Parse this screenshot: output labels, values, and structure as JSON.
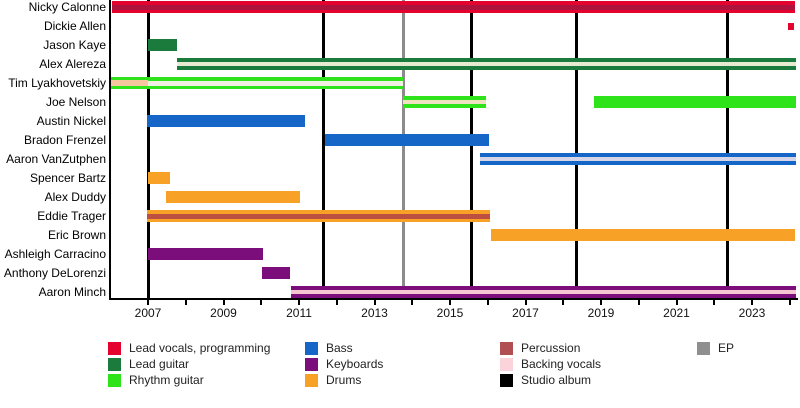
{
  "chart_data": {
    "type": "bar",
    "subtype": "band-member-gantt-timeline",
    "title": "",
    "xlabel": "",
    "ylabel": "",
    "x_axis": {
      "year_min": 2006.0,
      "year_max": 2024.2,
      "labeled_years": [
        "2007",
        "2009",
        "2011",
        "2013",
        "2015",
        "2017",
        "2019",
        "2021",
        "2023"
      ],
      "minor_tick_every_years": 1,
      "grid": "off"
    },
    "role_colors": {
      "lead_vocals_programming": "#E4032E",
      "lead_guitar": "#1A7B3D",
      "rhythm_guitar": "#2FE31B",
      "bass": "#1566C6",
      "keyboards": "#7C0E7C",
      "drums": "#F7A227",
      "percussion": "#B04E52",
      "backing_vocals": "#FBD3DB",
      "studio_album": "#000000",
      "ep": "#8F8F8F"
    },
    "members": [
      {
        "name": "Nicky Calonne",
        "bars": [
          {
            "start": 2006.05,
            "end": 2024.15,
            "role": "Lead vocals, programming",
            "color": "#E4032E",
            "stripe": {
              "role": "Percussion",
              "color": "#B0123E",
              "h": 5
            }
          }
        ]
      },
      {
        "name": "Dickie Allen",
        "bars": [
          {
            "start": 2023.95,
            "end": 2024.12,
            "role": "Lead vocals, programming",
            "color": "#E4032E",
            "h": 7
          }
        ]
      },
      {
        "name": "Jason Kaye",
        "bars": [
          {
            "start": 2007.0,
            "end": 2007.77,
            "role": "Lead guitar",
            "color": "#1A7B3D"
          }
        ]
      },
      {
        "name": "Alex Alereza",
        "bars": [
          {
            "start": 2007.77,
            "end": 2024.17,
            "role": "Lead guitar",
            "color": "#1A7B3D",
            "stripe": {
              "role": "Backing vocals",
              "color": "#E8EBD2",
              "h": 4
            }
          }
        ]
      },
      {
        "name": "Tim Lyakhovetskiy",
        "bars": [
          {
            "start": 2006.0,
            "end": 2007.0,
            "role": "Rhythm guitar",
            "color": "#2FE31B",
            "stripe": {
              "role": "Backing vocals",
              "color": "#F6C79E",
              "h": 6
            }
          },
          {
            "start": 2007.0,
            "end": 2013.76,
            "role": "Rhythm guitar",
            "color": "#2FE31B",
            "stripe": {
              "role": "Backing vocals",
              "color": "#EFF0E2",
              "h": 5
            }
          }
        ]
      },
      {
        "name": "Joe Nelson",
        "bars": [
          {
            "start": 2013.76,
            "end": 2015.95,
            "role": "Rhythm guitar",
            "color": "#2FE31B",
            "stripe": {
              "role": "Backing vocals",
              "color": "#EFE2C0",
              "h": 4
            }
          },
          {
            "start": 2018.81,
            "end": 2024.17,
            "role": "Rhythm guitar",
            "color": "#2FE31B"
          }
        ]
      },
      {
        "name": "Austin Nickel",
        "bars": [
          {
            "start": 2006.97,
            "end": 2011.16,
            "role": "Bass",
            "color": "#1566C6"
          }
        ]
      },
      {
        "name": "Bradon Frenzel",
        "bars": [
          {
            "start": 2011.69,
            "end": 2016.03,
            "role": "Bass",
            "color": "#1566C6"
          }
        ]
      },
      {
        "name": "Aaron VanZutphen",
        "bars": [
          {
            "start": 2015.79,
            "end": 2024.17,
            "role": "Bass",
            "color": "#1566C6",
            "stripe": {
              "role": "Backing vocals",
              "color": "#D6D6E8",
              "h": 4
            }
          }
        ]
      },
      {
        "name": "Spencer Bartz",
        "bars": [
          {
            "start": 2007.0,
            "end": 2007.58,
            "role": "Drums",
            "color": "#F7A227"
          }
        ]
      },
      {
        "name": "Alex Duddy",
        "bars": [
          {
            "start": 2007.48,
            "end": 2011.03,
            "role": "Drums",
            "color": "#F7A227"
          }
        ]
      },
      {
        "name": "Eddie Trager",
        "bars": [
          {
            "start": 2006.97,
            "end": 2016.06,
            "role": "Drums",
            "color": "#F7A227",
            "stripe": {
              "role": "Percussion",
              "color": "#BC4F41",
              "h": 5
            }
          }
        ]
      },
      {
        "name": "Eric Brown",
        "bars": [
          {
            "start": 2016.08,
            "end": 2024.14,
            "role": "Drums",
            "color": "#F7A227"
          }
        ]
      },
      {
        "name": "Ashleigh Carracino",
        "bars": [
          {
            "start": 2007.0,
            "end": 2010.05,
            "role": "Keyboards",
            "color": "#7C0E7C"
          }
        ]
      },
      {
        "name": "Anthony DeLorenzi",
        "bars": [
          {
            "start": 2010.02,
            "end": 2010.76,
            "role": "Keyboards",
            "color": "#7C0E7C"
          }
        ]
      },
      {
        "name": "Aaron Minch",
        "bars": [
          {
            "start": 2010.79,
            "end": 2024.17,
            "role": "Keyboards",
            "color": "#7C0E7C",
            "stripe": {
              "role": "Backing vocals",
              "color": "#F5C5D1",
              "h": 4
            }
          }
        ]
      }
    ],
    "events": {
      "studio_album_years": [
        2007.0,
        2011.66,
        2015.58,
        2018.36,
        2022.36
      ],
      "ep_years": [
        2013.76
      ],
      "studio_album_color": "#000000",
      "ep_color": "#8C8C8C"
    },
    "legend": {
      "items": [
        {
          "label": "Lead vocals, programming",
          "color": "#E4032E",
          "col": 0,
          "row": 0
        },
        {
          "label": "Lead guitar",
          "color": "#1A7B3D",
          "col": 0,
          "row": 1
        },
        {
          "label": "Rhythm guitar",
          "color": "#2FE31B",
          "col": 0,
          "row": 2
        },
        {
          "label": "Bass",
          "color": "#1566C6",
          "col": 1,
          "row": 0
        },
        {
          "label": "Keyboards",
          "color": "#7C0E7C",
          "col": 1,
          "row": 1
        },
        {
          "label": "Drums",
          "color": "#F7A227",
          "col": 1,
          "row": 2
        },
        {
          "label": "Percussion",
          "color": "#B04E52",
          "col": 2,
          "row": 0
        },
        {
          "label": "Backing vocals",
          "color": "#FBD3DB",
          "col": 2,
          "row": 1
        },
        {
          "label": "Studio album",
          "color": "#000000",
          "col": 2,
          "row": 2
        },
        {
          "label": "EP",
          "color": "#8F8F8F",
          "col": 3,
          "row": 0
        }
      ]
    }
  }
}
